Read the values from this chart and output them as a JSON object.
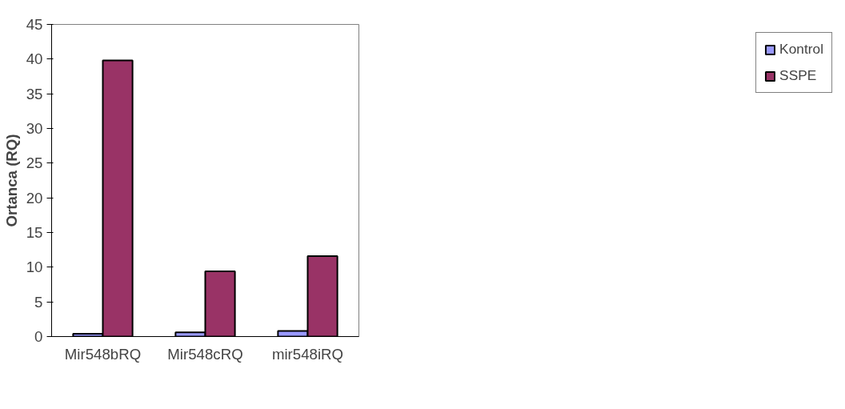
{
  "chart_data": {
    "type": "bar",
    "ylabel": "Ortanca (RQ)",
    "categories": [
      "Mir548bRQ",
      "Mir548cRQ",
      "mir548iRQ"
    ],
    "series": [
      {
        "name": "Kontrol",
        "color": "#9999ff",
        "values": [
          0.4,
          0.6,
          0.8
        ]
      },
      {
        "name": "SSPE",
        "color": "#993366",
        "values": [
          39.8,
          9.4,
          11.6
        ]
      }
    ],
    "ylim": [
      0,
      45
    ],
    "yticks": [
      0,
      5,
      10,
      15,
      20,
      25,
      30,
      35,
      40,
      45
    ],
    "grid": false,
    "legend": "right"
  }
}
